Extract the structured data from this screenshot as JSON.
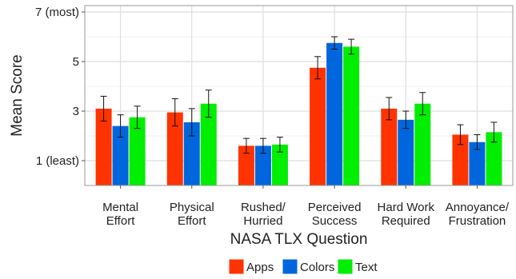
{
  "chart_data": {
    "type": "bar",
    "title": "",
    "xlabel": "NASA TLX Question",
    "ylabel": "Mean Score",
    "ylim": [
      0,
      7
    ],
    "y_ticks": [
      {
        "value": 1,
        "label": "1 (least)"
      },
      {
        "value": 3,
        "label": "3"
      },
      {
        "value": 5,
        "label": "5"
      },
      {
        "value": 7,
        "label": "7 (most)"
      }
    ],
    "categories": [
      [
        "Mental",
        "Effort"
      ],
      [
        "Physical",
        "Effort"
      ],
      [
        "Rushed/",
        "Hurried"
      ],
      [
        "Perceived",
        "Success"
      ],
      [
        "Hard Work",
        "Required"
      ],
      [
        "Annoyance/",
        "Frustration"
      ]
    ],
    "series": [
      {
        "name": "Apps",
        "color": "#ff3300",
        "values": [
          3.1,
          2.95,
          1.6,
          4.75,
          3.1,
          2.05
        ],
        "error": [
          0.5,
          0.55,
          0.3,
          0.45,
          0.45,
          0.4
        ]
      },
      {
        "name": "Colors",
        "color": "#0066dd",
        "values": [
          2.4,
          2.55,
          1.6,
          5.75,
          2.65,
          1.75
        ],
        "error": [
          0.45,
          0.55,
          0.3,
          0.25,
          0.35,
          0.3
        ]
      },
      {
        "name": "Text",
        "color": "#00ee00",
        "values": [
          2.75,
          3.3,
          1.65,
          5.6,
          3.3,
          2.15
        ],
        "error": [
          0.45,
          0.55,
          0.3,
          0.3,
          0.45,
          0.4
        ]
      }
    ],
    "grid": true,
    "legend": "bottom"
  }
}
